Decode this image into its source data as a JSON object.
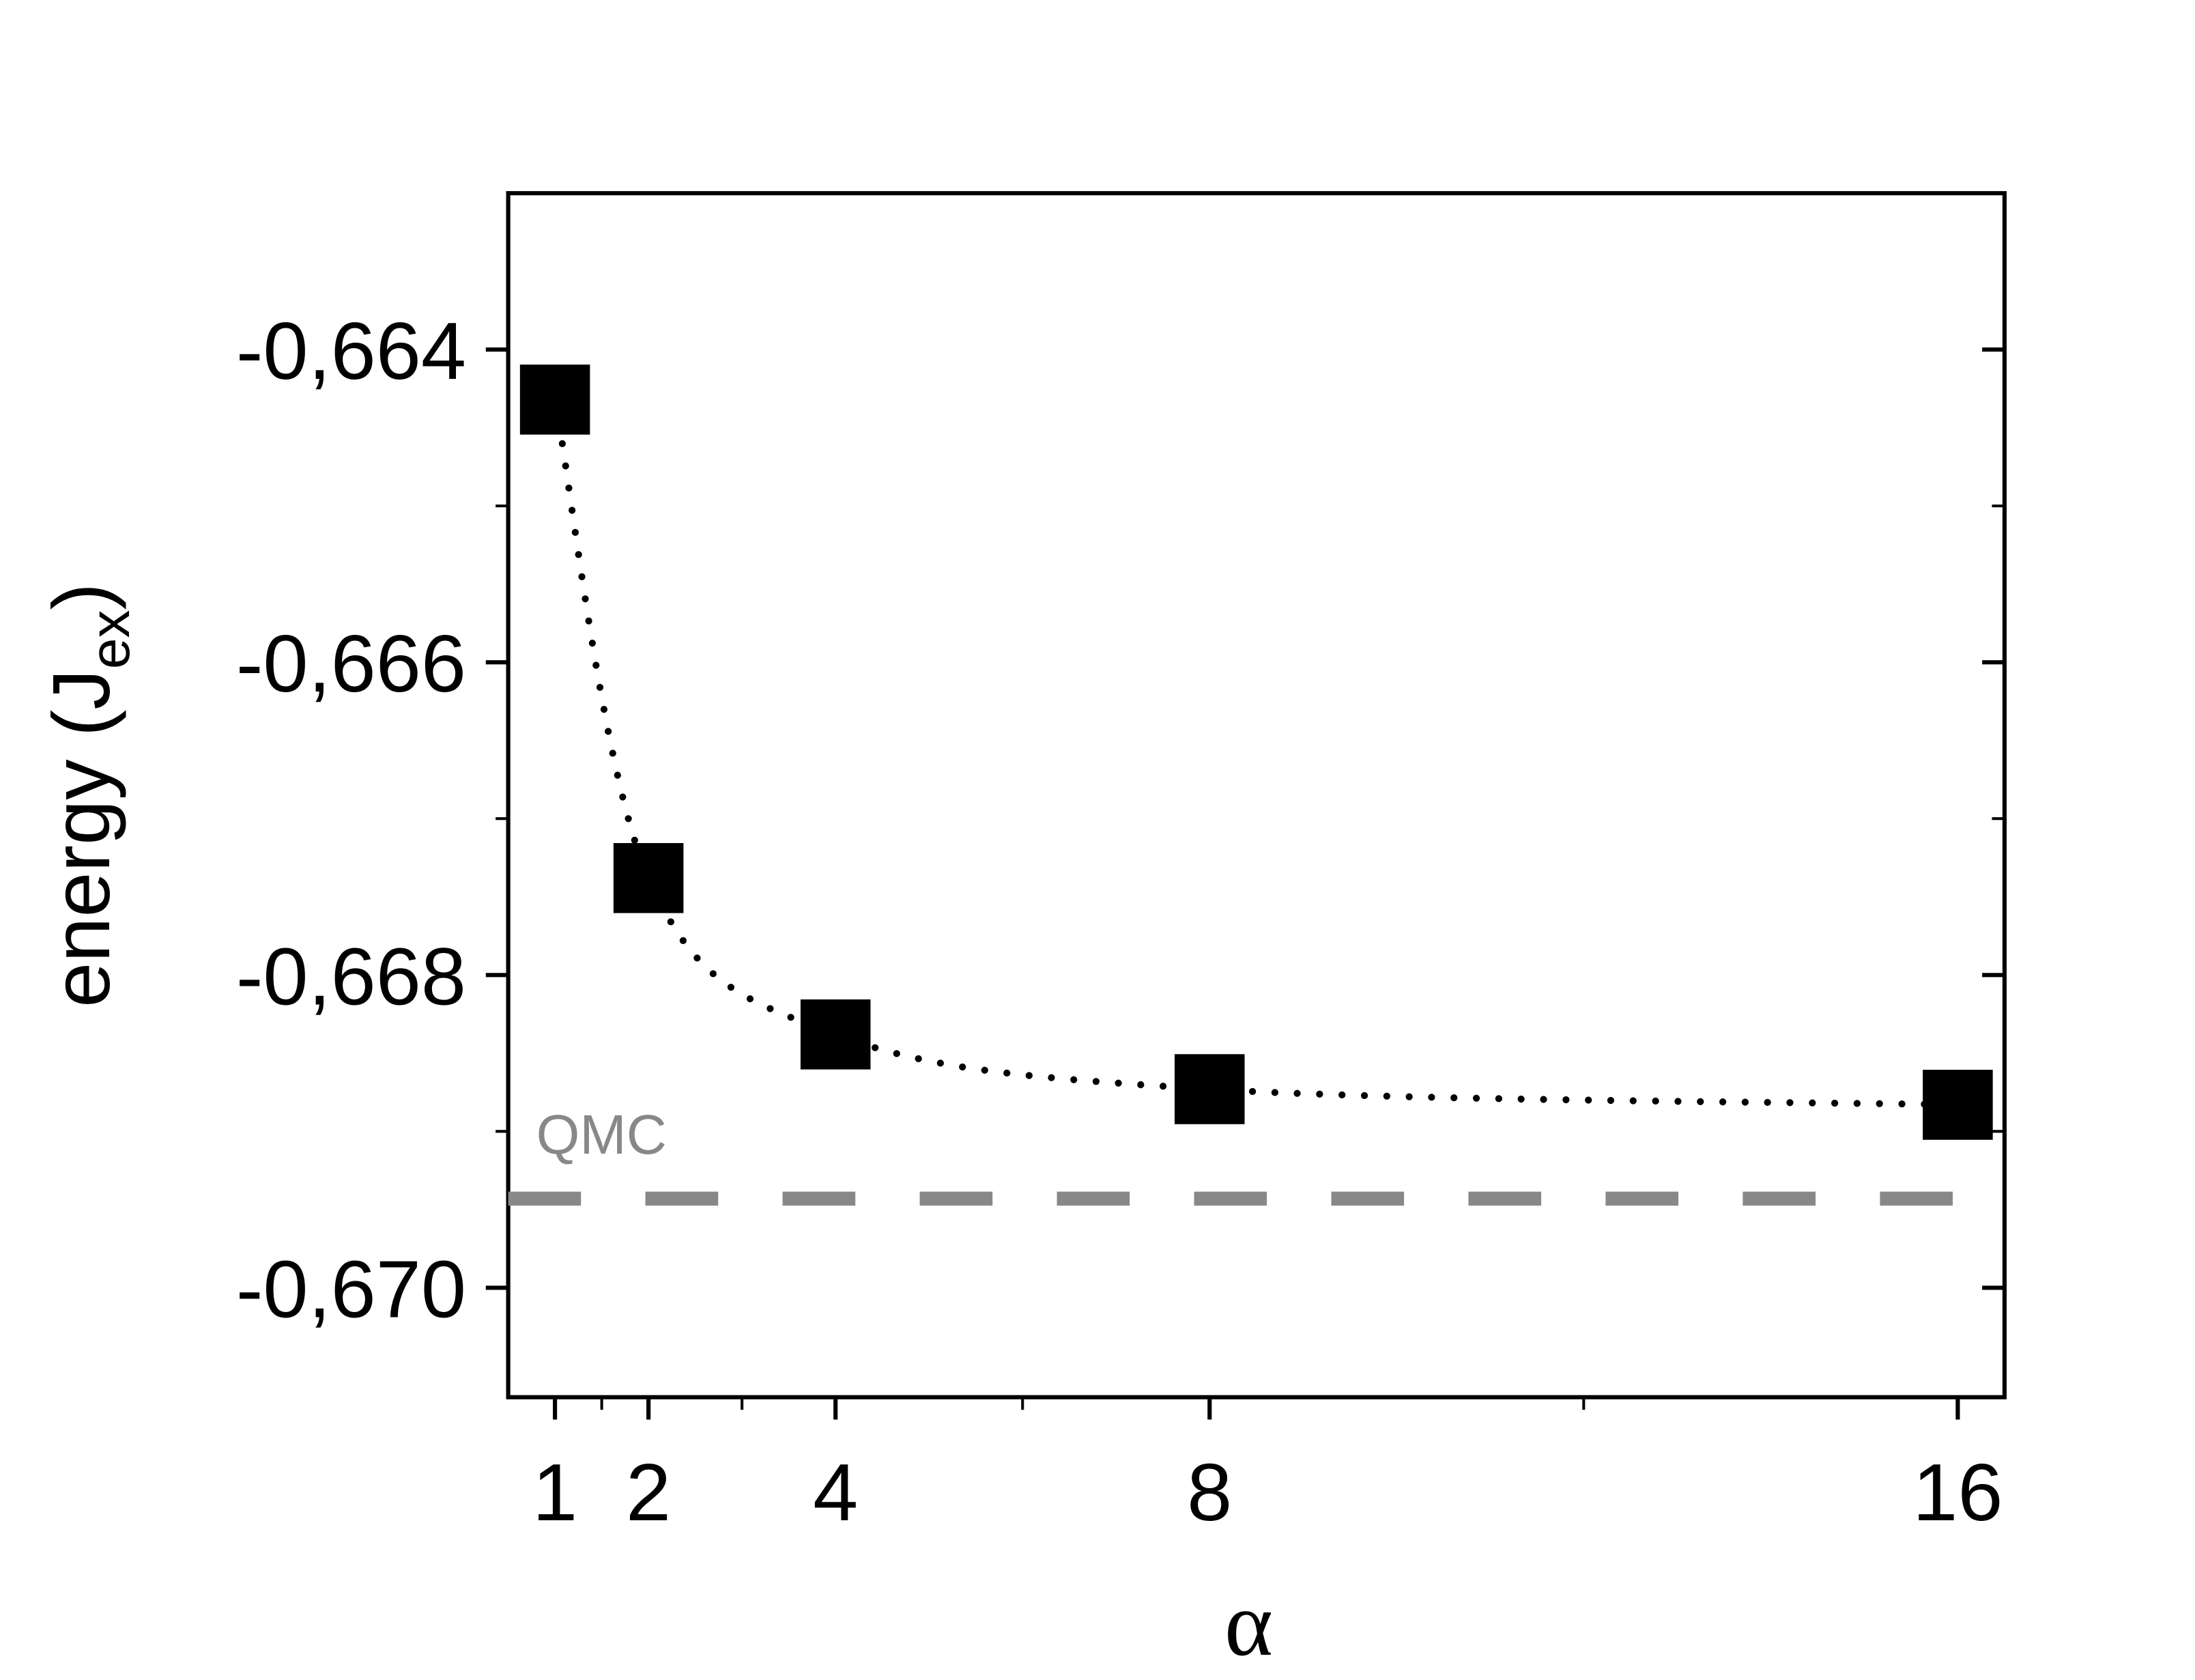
{
  "chart_data": {
    "type": "scatter",
    "xlabel": "α",
    "ylabel": {
      "main": "energy (J",
      "sub": "ex",
      "end": ")"
    },
    "x": [
      1,
      2,
      4,
      8,
      16
    ],
    "series": [
      {
        "color": "#000000",
        "values": [
          -0.66432,
          -0.66738,
          -0.66838,
          -0.66873,
          -0.66883
        ]
      }
    ],
    "reference": {
      "label": "QMC",
      "value": -0.66943,
      "color": "#888888"
    },
    "xlim": [
      0.5,
      16.5
    ],
    "xticks": [
      1,
      2,
      4,
      8,
      16
    ],
    "xminorticks": [
      1.5,
      3,
      6,
      12
    ],
    "ylim": [
      -0.6707,
      -0.663
    ],
    "yticks": [
      {
        "value": -0.664,
        "label": "-0,664"
      },
      {
        "value": -0.666,
        "label": "-0,666"
      },
      {
        "value": -0.668,
        "label": "-0,668"
      },
      {
        "value": -0.67,
        "label": "-0,670"
      }
    ],
    "yminorticks": [
      -0.665,
      -0.667,
      -0.669
    ]
  }
}
